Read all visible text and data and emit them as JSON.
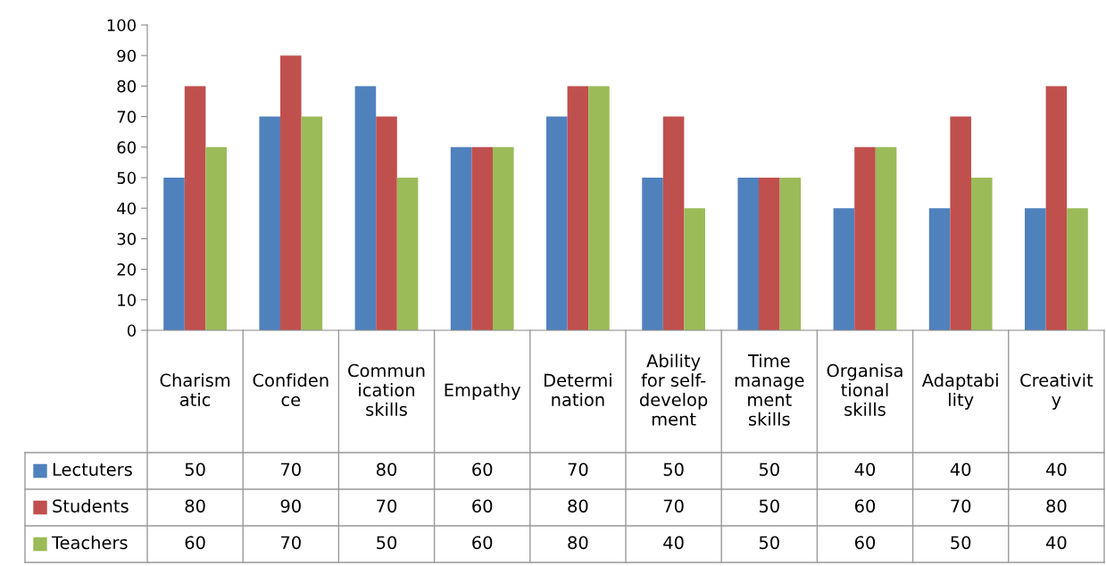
{
  "chart_data": {
    "type": "bar",
    "categories": [
      "Charism\natic",
      "Confiden\nce",
      "Commun\nication\nskills",
      "Empathy",
      "Determi\nnation",
      "Ability\nfor self-\ndevelop\nment",
      "Time\nmanage\nment\nskills",
      "Organisa\ntional\nskills",
      "Adaptabi\nlity",
      "Creativit\ny"
    ],
    "series": [
      {
        "name": "Lectuters",
        "color": "#4f81bd",
        "values": [
          50,
          70,
          80,
          60,
          70,
          50,
          50,
          40,
          40,
          40
        ]
      },
      {
        "name": "Students",
        "color": "#c0504d",
        "values": [
          80,
          90,
          70,
          60,
          80,
          70,
          50,
          60,
          70,
          80
        ]
      },
      {
        "name": "Teachers",
        "color": "#9bbb59",
        "values": [
          60,
          70,
          50,
          60,
          80,
          40,
          50,
          60,
          50,
          40
        ]
      }
    ],
    "ylim": [
      0,
      100
    ],
    "yticks": [
      0,
      10,
      20,
      30,
      40,
      50,
      60,
      70,
      80,
      90,
      100
    ],
    "grid": false,
    "legend": "bottom left",
    "data_labels": true
  }
}
